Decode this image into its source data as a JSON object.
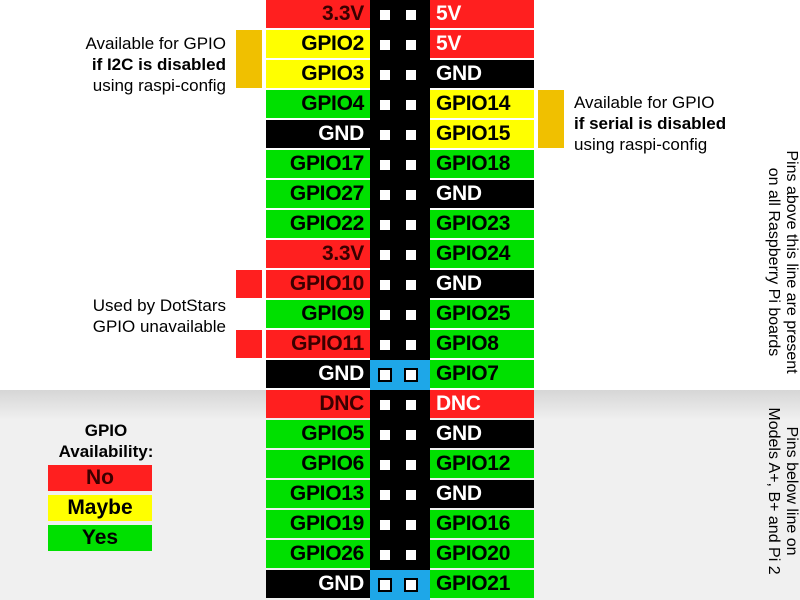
{
  "header_rows": [
    {
      "left": "3.3V",
      "left_color": "red",
      "right": "5V",
      "right_color": "red",
      "highlight": false
    },
    {
      "left": "GPIO2",
      "left_color": "yellow",
      "right": "5V",
      "right_color": "red",
      "highlight": false
    },
    {
      "left": "GPIO3",
      "left_color": "yellow",
      "right": "GND",
      "right_color": "black",
      "highlight": false
    },
    {
      "left": "GPIO4",
      "left_color": "green",
      "right": "GPIO14",
      "right_color": "yellow",
      "highlight": false
    },
    {
      "left": "GND",
      "left_color": "black",
      "right": "GPIO15",
      "right_color": "yellow",
      "highlight": false
    },
    {
      "left": "GPIO17",
      "left_color": "green",
      "right": "GPIO18",
      "right_color": "green",
      "highlight": false
    },
    {
      "left": "GPIO27",
      "left_color": "green",
      "right": "GND",
      "right_color": "black",
      "highlight": false
    },
    {
      "left": "GPIO22",
      "left_color": "green",
      "right": "GPIO23",
      "right_color": "green",
      "highlight": false
    },
    {
      "left": "3.3V",
      "left_color": "red",
      "right": "GPIO24",
      "right_color": "green",
      "highlight": false
    },
    {
      "left": "GPIO10",
      "left_color": "red",
      "right": "GND",
      "right_color": "black",
      "highlight": false
    },
    {
      "left": "GPIO9",
      "left_color": "green",
      "right": "GPIO25",
      "right_color": "green",
      "highlight": false
    },
    {
      "left": "GPIO11",
      "left_color": "red",
      "right": "GPIO8",
      "right_color": "green",
      "highlight": false
    },
    {
      "left": "GND",
      "left_color": "black",
      "right": "GPIO7",
      "right_color": "green",
      "highlight": true
    },
    {
      "left": "DNC",
      "left_color": "red",
      "right": "DNC",
      "right_color": "red",
      "highlight": false
    },
    {
      "left": "GPIO5",
      "left_color": "green",
      "right": "GND",
      "right_color": "black",
      "highlight": false
    },
    {
      "left": "GPIO6",
      "left_color": "green",
      "right": "GPIO12",
      "right_color": "green",
      "highlight": false
    },
    {
      "left": "GPIO13",
      "left_color": "green",
      "right": "GND",
      "right_color": "black",
      "highlight": false
    },
    {
      "left": "GPIO19",
      "left_color": "green",
      "right": "GPIO16",
      "right_color": "green",
      "highlight": false
    },
    {
      "left": "GPIO26",
      "left_color": "green",
      "right": "GPIO20",
      "right_color": "green",
      "highlight": false
    },
    {
      "left": "GND",
      "left_color": "black",
      "right": "GPIO21",
      "right_color": "green",
      "highlight": true
    }
  ],
  "notes": {
    "i2c": {
      "line1": "Available for GPIO",
      "line2": "if I2C is disabled",
      "line3": "using raspi-config"
    },
    "serial": {
      "line1": "Available for GPIO",
      "line2": "if serial is disabled",
      "line3": "using raspi-config"
    },
    "dotstars": {
      "line1": "Used by DotStars",
      "line2": "GPIO unavailable"
    }
  },
  "side_text": {
    "upper": {
      "line1": "Pins above this line are present",
      "line2": "on all Raspberry Pi boards"
    },
    "lower": {
      "line1": "Pins below line on",
      "line2": "Models A+, B+ and Pi 2"
    }
  },
  "legend": {
    "title_line1": "GPIO",
    "title_line2": "Availability:",
    "items": [
      {
        "label": "No",
        "color": "red"
      },
      {
        "label": "Maybe",
        "color": "yellow"
      },
      {
        "label": "Yes",
        "color": "green"
      }
    ]
  },
  "colors": {
    "red": "#ff1f1f",
    "yellow": "#ffff00",
    "green": "#00e000",
    "black": "#000000",
    "highlight": "#1ea7e8",
    "bracket": "#f0c000"
  }
}
